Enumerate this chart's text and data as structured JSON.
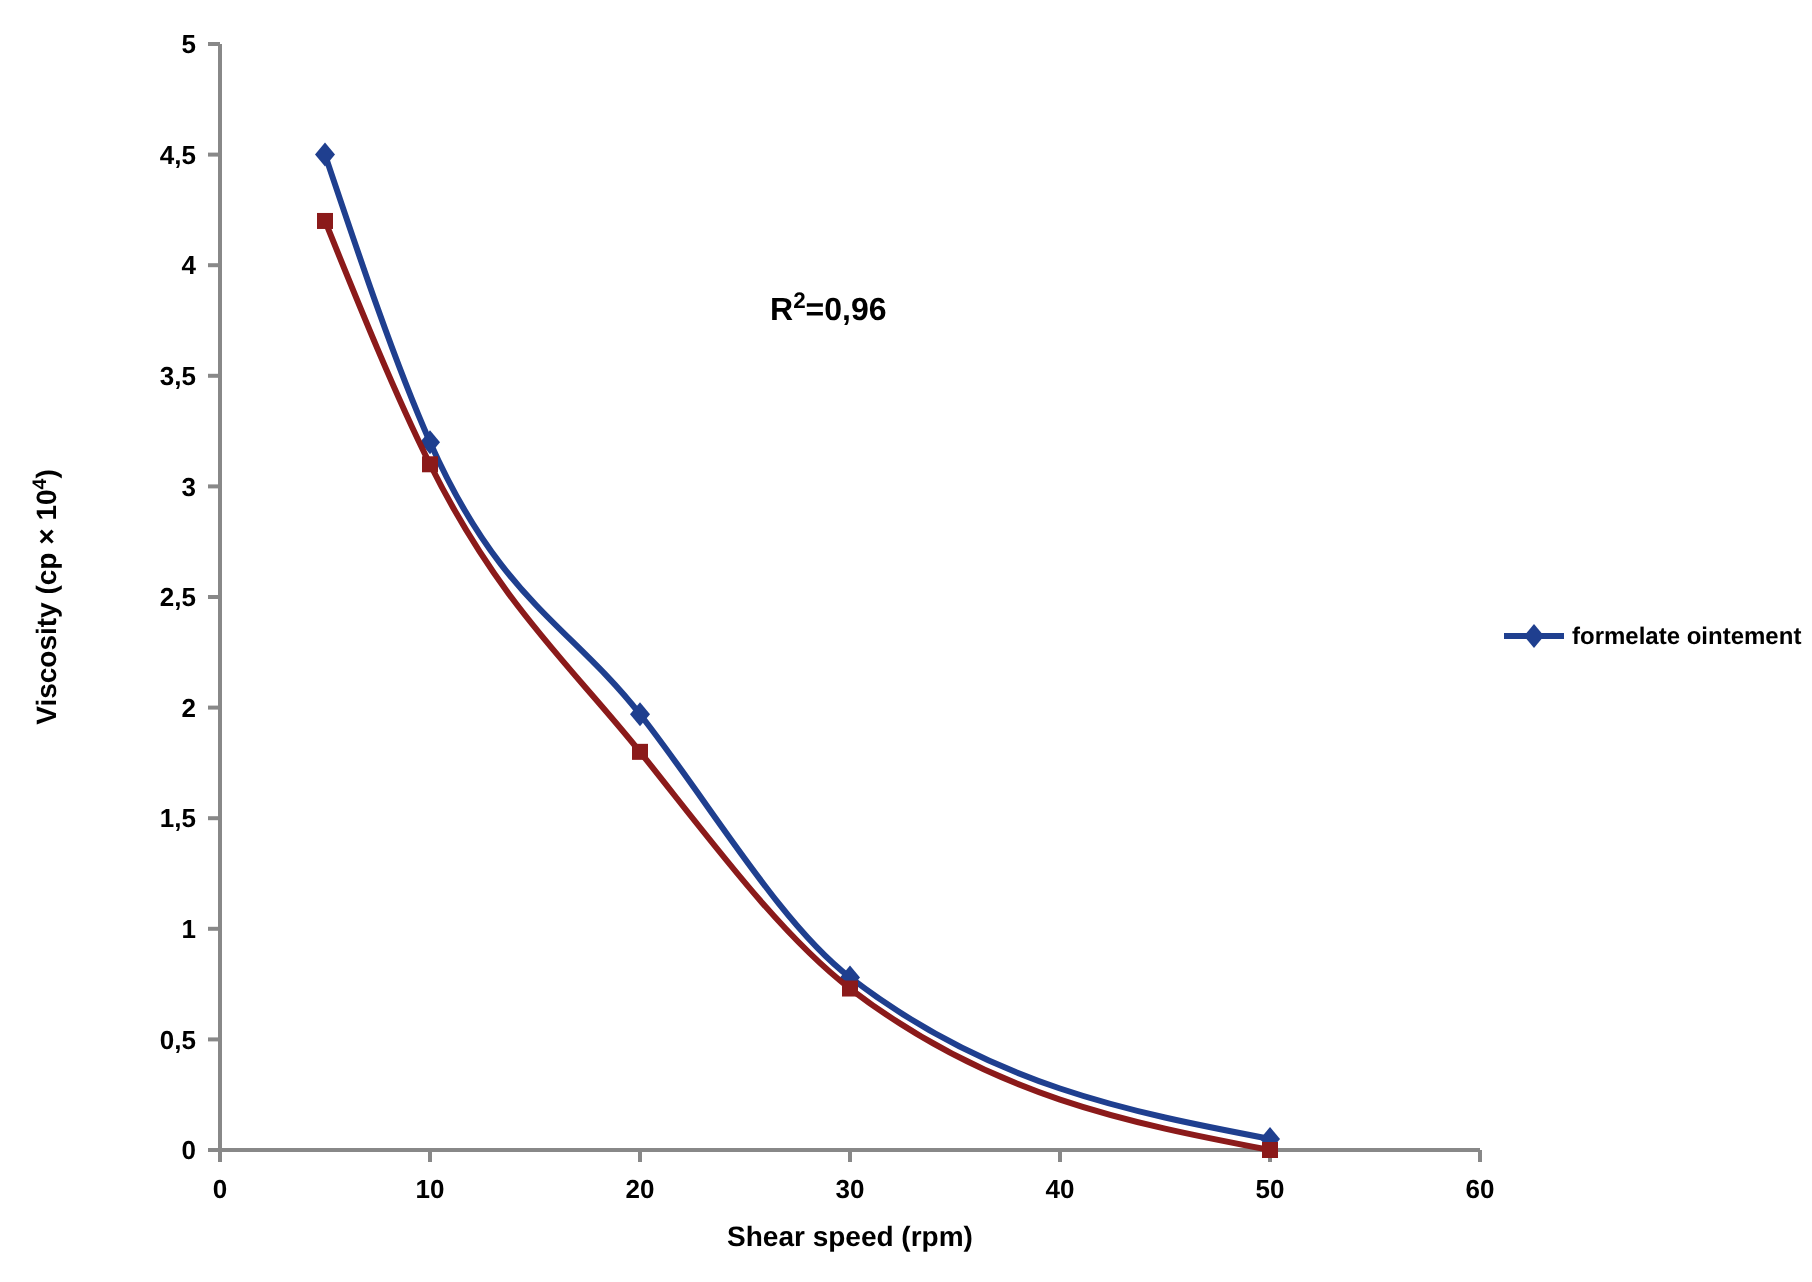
{
  "chart_data": {
    "type": "line",
    "xlabel": "Shear speed (rpm)",
    "ylabel": "Viscosity (cp × 10$^{4}$)",
    "annotations": [
      "R$^{2}$=0,96"
    ],
    "xlim": [
      0,
      60
    ],
    "xticks": [
      0,
      10,
      20,
      30,
      40,
      50,
      60
    ],
    "ylim": [
      0,
      5
    ],
    "yticks": [
      0,
      {
        "value": 0.5,
        "label": "0,5"
      },
      1,
      {
        "value": 1.5,
        "label": "1,5"
      },
      2,
      {
        "value": 2.5,
        "label": "2,5"
      },
      3,
      {
        "value": 3.5,
        "label": "3,5"
      },
      4,
      {
        "value": 4.5,
        "label": "4,5"
      },
      5
    ],
    "grid": false,
    "legend": "right",
    "series": [
      {
        "name": "formelate ointement",
        "color": "#1f3f8f",
        "marker": "diamond",
        "x": [
          5,
          10,
          20,
          30,
          50
        ],
        "values": [
          4.5,
          3.2,
          1.97,
          0.78,
          0.05
        ]
      },
      {
        "color": "#8b1a1a",
        "marker": "square",
        "x": [
          5,
          10,
          20,
          30,
          50
        ],
        "values": [
          4.2,
          3.1,
          1.8,
          0.73,
          0.0
        ]
      }
    ]
  }
}
